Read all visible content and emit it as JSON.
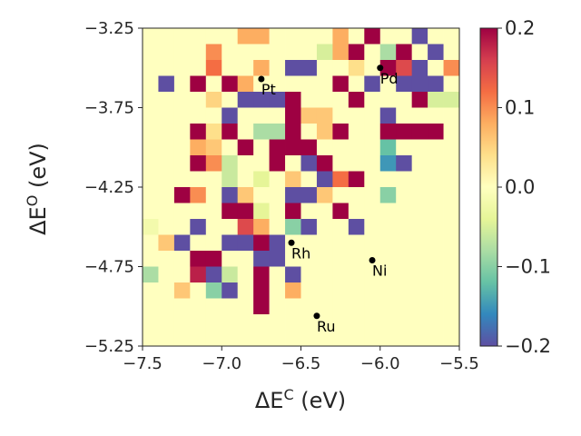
{
  "chart_data": {
    "type": "heatmap",
    "title": "",
    "xlabel": {
      "base": "ΔE",
      "sup": "C",
      "unit": " (eV)"
    },
    "ylabel": {
      "base": "ΔE",
      "sup": "O",
      "unit": " (eV)"
    },
    "xlim": [
      -7.5,
      -5.5
    ],
    "ylim": [
      -5.25,
      -3.25
    ],
    "x_ticks": [
      -7.5,
      -7.0,
      -6.5,
      -6.0,
      -5.5
    ],
    "x_tick_labels": [
      "−7.5",
      "−7.0",
      "−6.5",
      "−6.0",
      "−5.5"
    ],
    "y_ticks": [
      -3.25,
      -3.75,
      -4.25,
      -4.75,
      -5.25
    ],
    "y_tick_labels": [
      "−3.25",
      "−3.75",
      "−4.25",
      "−4.75",
      "−5.25"
    ],
    "grid": false,
    "colorbar": {
      "colormap": "Spectral_r",
      "vmin": -0.2,
      "vmax": 0.2,
      "ticks": [
        0.2,
        0.1,
        0.0,
        -0.1,
        -0.2
      ],
      "tick_labels": [
        "0.2",
        "0.1",
        "0.0",
        "−0.1",
        "−0.2"
      ],
      "colors": [
        "#5e4fa2",
        "#3288bd",
        "#66c2a5",
        "#abdda4",
        "#e6f598",
        "#ffffbf",
        "#fee08b",
        "#fdae61",
        "#f46d43",
        "#d53e4f",
        "#9e0142"
      ]
    },
    "grid_shape": {
      "cols": 20,
      "rows": 20,
      "cell_size": 0.1
    },
    "cells_note": "each cell: [column_index, row_index_from_top, value]; unlisted cells ≈ 0",
    "cells": [
      [
        6,
        0,
        0.08
      ],
      [
        7,
        0,
        0.08
      ],
      [
        12,
        0,
        0.08
      ],
      [
        14,
        0,
        0.2
      ],
      [
        17,
        0,
        -0.2
      ],
      [
        4,
        1,
        0.1
      ],
      [
        11,
        1,
        -0.05
      ],
      [
        12,
        1,
        0.08
      ],
      [
        13,
        1,
        0.2
      ],
      [
        15,
        1,
        -0.08
      ],
      [
        16,
        1,
        0.2
      ],
      [
        18,
        1,
        -0.2
      ],
      [
        4,
        2,
        0.12
      ],
      [
        7,
        2,
        0.08
      ],
      [
        9,
        2,
        -0.2
      ],
      [
        10,
        2,
        -0.2
      ],
      [
        13,
        2,
        0.04
      ],
      [
        15,
        2,
        0.2
      ],
      [
        16,
        2,
        0.15
      ],
      [
        17,
        2,
        -0.2
      ],
      [
        19,
        2,
        0.1
      ],
      [
        1,
        3,
        -0.2
      ],
      [
        3,
        3,
        0.2
      ],
      [
        5,
        3,
        0.2
      ],
      [
        6,
        3,
        0.08
      ],
      [
        12,
        3,
        0.2
      ],
      [
        14,
        3,
        -0.2
      ],
      [
        16,
        3,
        -0.2
      ],
      [
        17,
        3,
        -0.2
      ],
      [
        18,
        3,
        -0.2
      ],
      [
        4,
        4,
        0.05
      ],
      [
        6,
        4,
        -0.2
      ],
      [
        7,
        4,
        -0.2
      ],
      [
        8,
        4,
        -0.2
      ],
      [
        9,
        4,
        0.2
      ],
      [
        13,
        4,
        0.2
      ],
      [
        17,
        4,
        0.2
      ],
      [
        18,
        4,
        -0.05
      ],
      [
        19,
        4,
        -0.05
      ],
      [
        5,
        5,
        -0.2
      ],
      [
        9,
        5,
        0.2
      ],
      [
        10,
        5,
        0.06
      ],
      [
        11,
        5,
        0.06
      ],
      [
        15,
        5,
        -0.2
      ],
      [
        3,
        6,
        0.2
      ],
      [
        4,
        6,
        0.04
      ],
      [
        5,
        6,
        0.2
      ],
      [
        7,
        6,
        -0.08
      ],
      [
        8,
        6,
        -0.08
      ],
      [
        9,
        6,
        0.2
      ],
      [
        11,
        6,
        0.06
      ],
      [
        12,
        6,
        0.2
      ],
      [
        15,
        6,
        0.2
      ],
      [
        16,
        6,
        0.2
      ],
      [
        17,
        6,
        0.2
      ],
      [
        18,
        6,
        0.2
      ],
      [
        3,
        7,
        0.08
      ],
      [
        4,
        7,
        0.06
      ],
      [
        6,
        7,
        0.2
      ],
      [
        8,
        7,
        0.2
      ],
      [
        9,
        7,
        0.2
      ],
      [
        10,
        7,
        0.2
      ],
      [
        15,
        7,
        -0.12
      ],
      [
        3,
        8,
        0.2
      ],
      [
        4,
        8,
        0.1
      ],
      [
        5,
        8,
        -0.06
      ],
      [
        8,
        8,
        0.2
      ],
      [
        10,
        8,
        -0.2
      ],
      [
        11,
        8,
        0.2
      ],
      [
        15,
        8,
        -0.15
      ],
      [
        16,
        8,
        -0.2
      ],
      [
        5,
        9,
        -0.06
      ],
      [
        7,
        9,
        -0.04
      ],
      [
        9,
        9,
        0.06
      ],
      [
        11,
        9,
        -0.2
      ],
      [
        12,
        9,
        0.12
      ],
      [
        13,
        9,
        0.2
      ],
      [
        2,
        10,
        0.2
      ],
      [
        3,
        10,
        0.1
      ],
      [
        5,
        10,
        -0.2
      ],
      [
        6,
        10,
        0.06
      ],
      [
        9,
        10,
        -0.2
      ],
      [
        10,
        10,
        -0.2
      ],
      [
        11,
        10,
        0.06
      ],
      [
        15,
        10,
        -0.1
      ],
      [
        5,
        11,
        0.2
      ],
      [
        6,
        11,
        0.2
      ],
      [
        7,
        11,
        -0.04
      ],
      [
        9,
        11,
        0.2
      ],
      [
        12,
        11,
        0.2
      ],
      [
        0,
        12,
        -0.02
      ],
      [
        3,
        12,
        -0.2
      ],
      [
        6,
        12,
        0.15
      ],
      [
        7,
        12,
        0.08
      ],
      [
        9,
        12,
        -0.1
      ],
      [
        10,
        12,
        -0.2
      ],
      [
        13,
        12,
        -0.2
      ],
      [
        1,
        13,
        0.06
      ],
      [
        2,
        13,
        -0.2
      ],
      [
        5,
        13,
        -0.2
      ],
      [
        6,
        13,
        -0.2
      ],
      [
        7,
        13,
        0.2
      ],
      [
        8,
        13,
        -0.2
      ],
      [
        3,
        14,
        0.2
      ],
      [
        4,
        14,
        0.2
      ],
      [
        7,
        14,
        -0.2
      ],
      [
        8,
        14,
        -0.2
      ],
      [
        0,
        15,
        -0.08
      ],
      [
        3,
        15,
        0.18
      ],
      [
        4,
        15,
        -0.2
      ],
      [
        5,
        15,
        -0.06
      ],
      [
        7,
        15,
        0.2
      ],
      [
        9,
        15,
        -0.2
      ],
      [
        2,
        16,
        0.06
      ],
      [
        4,
        16,
        -0.1
      ],
      [
        5,
        16,
        -0.2
      ],
      [
        7,
        16,
        0.2
      ],
      [
        9,
        16,
        0.08
      ],
      [
        7,
        17,
        0.2
      ]
    ],
    "annotations": [
      {
        "label": "Pt",
        "x": -6.75,
        "y": -3.57
      },
      {
        "label": "Pd",
        "x": -6.0,
        "y": -3.5
      },
      {
        "label": "Rh",
        "x": -6.56,
        "y": -4.6
      },
      {
        "label": "Ni",
        "x": -6.05,
        "y": -4.71
      },
      {
        "label": "Ru",
        "x": -6.4,
        "y": -5.06
      }
    ]
  }
}
